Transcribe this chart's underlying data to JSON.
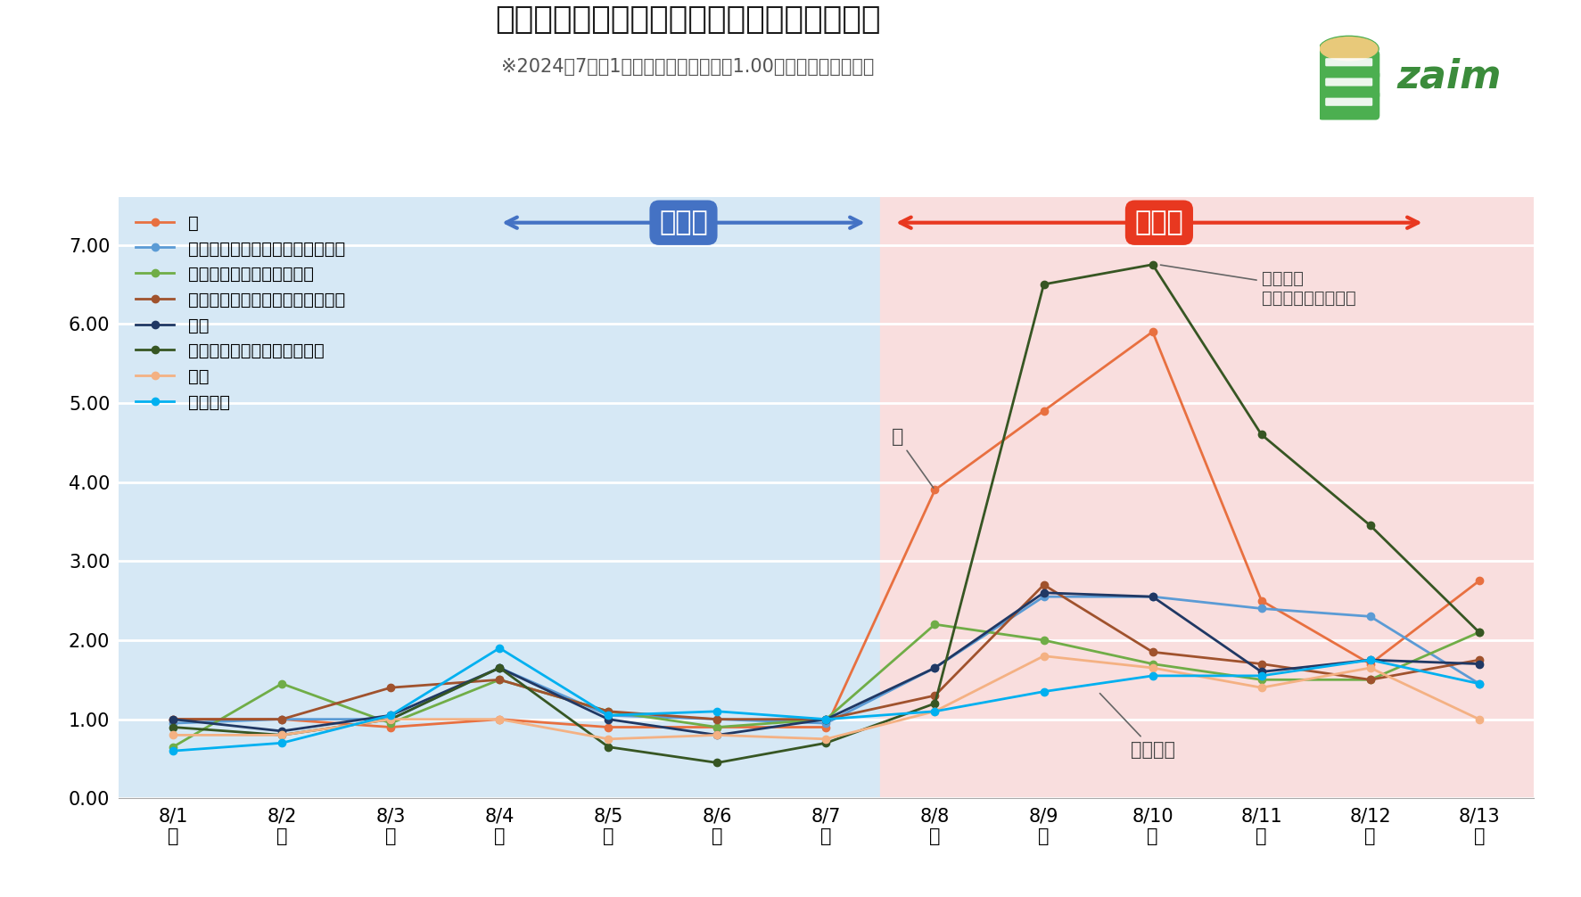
{
  "title": "被害想定エリアの災害関連品目の支出額推移",
  "subtitle": "※2024年7月の1日あたり平均支出額を1.00とした場合の変動比",
  "x_labels_top": [
    "8/1",
    "8/2",
    "8/3",
    "8/4",
    "8/5",
    "8/6",
    "8/7",
    "8/8",
    "8/9",
    "8/10",
    "8/11",
    "8/12",
    "8/13"
  ],
  "x_labels_bot": [
    "木",
    "金",
    "土",
    "日",
    "月",
    "火",
    "水",
    "木",
    "金",
    "土",
    "日",
    "祝",
    "火"
  ],
  "ylim": [
    0.0,
    7.6
  ],
  "yticks": [
    0.0,
    1.0,
    2.0,
    3.0,
    4.0,
    5.0,
    6.0,
    7.0
  ],
  "series": [
    {
      "name": "水",
      "color": "#E87040",
      "values": [
        1.0,
        1.0,
        0.9,
        1.0,
        0.9,
        0.9,
        0.9,
        3.9,
        4.9,
        5.9,
        2.5,
        1.7,
        2.75
      ]
    },
    {
      "name": "ティッシュ・トイレットペーパー",
      "color": "#5B9BD5",
      "values": [
        0.95,
        1.0,
        1.0,
        1.65,
        1.05,
        1.0,
        0.95,
        1.65,
        2.55,
        2.55,
        2.4,
        2.3,
        1.45
      ]
    },
    {
      "name": "ラップ・アルミ・食品包装",
      "color": "#70AD47",
      "values": [
        0.65,
        1.45,
        0.95,
        1.5,
        1.1,
        0.9,
        1.0,
        2.2,
        2.0,
        1.7,
        1.5,
        1.5,
        2.1
      ]
    },
    {
      "name": "レトルト・レンジ食品・調理の素",
      "color": "#A0522D",
      "values": [
        1.0,
        1.0,
        1.4,
        1.5,
        1.1,
        1.0,
        1.0,
        1.3,
        2.7,
        1.85,
        1.7,
        1.5,
        1.75
      ]
    },
    {
      "name": "缶詰",
      "color": "#203864",
      "values": [
        1.0,
        0.85,
        1.05,
        1.65,
        1.0,
        0.8,
        1.0,
        1.65,
        2.6,
        2.55,
        1.6,
        1.75,
        1.7
      ]
    },
    {
      "name": "消耗家電（電池・電球など）",
      "color": "#375623",
      "values": [
        0.9,
        0.8,
        1.0,
        1.65,
        0.65,
        0.45,
        0.7,
        1.2,
        6.5,
        6.75,
        4.6,
        3.45,
        2.1
      ]
    },
    {
      "name": "麺類",
      "color": "#F4B183",
      "values": [
        0.8,
        0.8,
        1.0,
        1.0,
        0.75,
        0.8,
        0.75,
        1.1,
        1.8,
        1.65,
        1.4,
        1.65,
        1.0
      ]
    },
    {
      "name": "米・穀類",
      "color": "#00B0F0",
      "values": [
        0.6,
        0.7,
        1.05,
        1.9,
        1.05,
        1.1,
        1.0,
        1.1,
        1.35,
        1.55,
        1.55,
        1.75,
        1.45
      ]
    }
  ],
  "before_label": "発表前",
  "after_label": "発表後",
  "bg_color_left": "#D6E8F5",
  "bg_color_right": "#F9DEDE",
  "outer_bg_color": "#FFFFFF",
  "chart_bg": "#FFFFFF",
  "split_index": 6.5,
  "title_fontsize": 26,
  "subtitle_fontsize": 15,
  "tick_fontsize": 15,
  "legend_fontsize": 14,
  "arrow_color_before": "#4472C4",
  "arrow_color_after": "#E83820",
  "zaim_green": "#4CAF50",
  "zaim_text_color": "#3B8C3B"
}
